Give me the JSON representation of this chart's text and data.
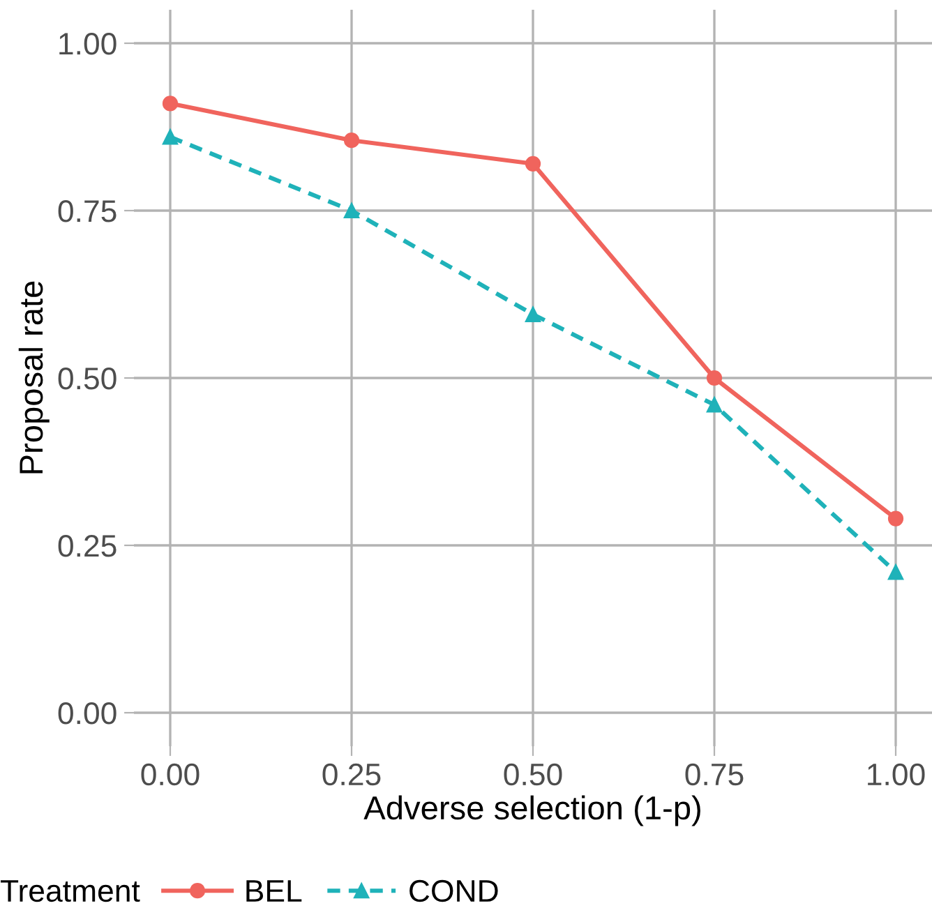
{
  "chart_data": {
    "type": "line",
    "xlabel": "Adverse selection (1-p)",
    "ylabel": "Proposal rate",
    "legend_title": "Treatment",
    "x": [
      0,
      0.25,
      0.5,
      0.75,
      1
    ],
    "series": [
      {
        "name": "BEL",
        "color": "#f0645d",
        "values": [
          0.91,
          0.855,
          0.82,
          0.5,
          0.29
        ],
        "marker": "circle",
        "line_style": "solid"
      },
      {
        "name": "COND",
        "color": "#1fb2b9",
        "values": [
          0.86,
          0.75,
          0.595,
          0.46,
          0.21
        ],
        "marker": "triangle",
        "line_style": "dashed"
      }
    ],
    "xlim": [
      -0.05,
      1.05
    ],
    "ylim": [
      -0.05,
      1.05
    ],
    "xticks": [
      {
        "value": 0,
        "label": "0.00"
      },
      {
        "value": 0.25,
        "label": "0.25"
      },
      {
        "value": 0.5,
        "label": "0.50"
      },
      {
        "value": 0.75,
        "label": "0.75"
      },
      {
        "value": 1,
        "label": "1.00"
      }
    ],
    "yticks": [
      {
        "value": 0,
        "label": "0.00"
      },
      {
        "value": 0.25,
        "label": "0.25"
      },
      {
        "value": 0.5,
        "label": "0.50"
      },
      {
        "value": 0.75,
        "label": "0.75"
      },
      {
        "value": 1,
        "label": "1.00"
      }
    ],
    "grid": true,
    "legend": "bottom"
  }
}
